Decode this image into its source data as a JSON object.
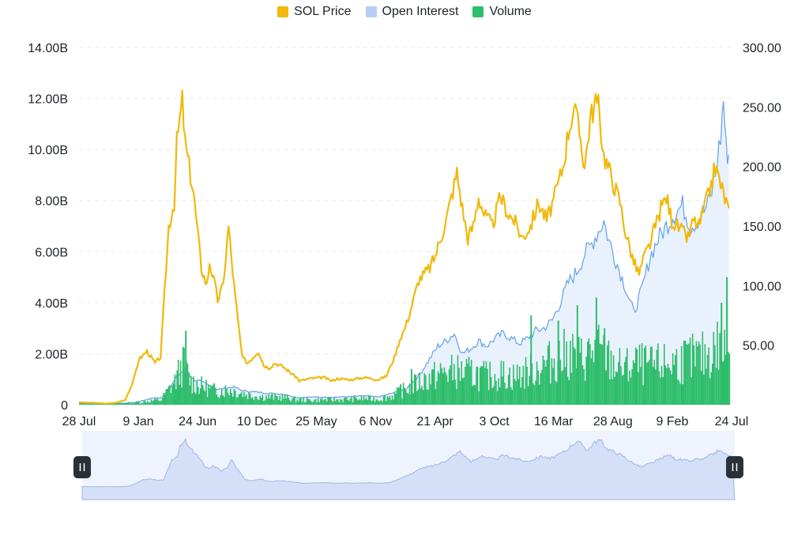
{
  "legend": {
    "items": [
      {
        "label": "SOL Price",
        "color": "#f0b90b"
      },
      {
        "label": "Open Interest",
        "color": "#b7cdf6"
      },
      {
        "label": "Volume",
        "color": "#2ebd6b"
      }
    ]
  },
  "chart_data": {
    "type": "line",
    "title": "",
    "xlabel": "",
    "ylabel_left": "",
    "ylabel_right": "",
    "legend_position": "top-center",
    "grid": true,
    "x_ticks": [
      "28 Jul",
      "9 Jan",
      "24 Jun",
      "10 Dec",
      "25 May",
      "6 Nov",
      "21 Apr",
      "3 Oct",
      "16 Mar",
      "28 Aug",
      "9 Feb",
      "24 Jul"
    ],
    "y_left": {
      "range": [
        0,
        14000000000
      ],
      "tick_labels": [
        "0",
        "2.00B",
        "4.00B",
        "6.00B",
        "8.00B",
        "10.00B",
        "12.00B",
        "14.00B"
      ]
    },
    "y_right": {
      "range": [
        0,
        300
      ],
      "tick_labels": [
        "50.00",
        "100.00",
        "150.00",
        "200.00",
        "250.00",
        "300.00"
      ]
    },
    "series": [
      {
        "name": "SOL Price",
        "axis": "right",
        "color": "#f0b90b",
        "kind": "line",
        "points": [
          [
            0,
            2
          ],
          [
            0.5,
            1.6
          ],
          [
            1,
            1
          ],
          [
            1.3,
            1.5
          ],
          [
            1.7,
            4
          ],
          [
            2,
            20
          ],
          [
            2.2,
            38
          ],
          [
            2.5,
            45
          ],
          [
            2.8,
            35
          ],
          [
            3,
            40
          ],
          [
            3.3,
            150
          ],
          [
            3.5,
            170
          ],
          [
            3.6,
            220
          ],
          [
            3.8,
            255
          ],
          [
            3.9,
            220
          ],
          [
            4.2,
            180
          ],
          [
            4.5,
            115
          ],
          [
            4.7,
            100
          ],
          [
            4.8,
            120
          ],
          [
            5,
            100
          ],
          [
            5.1,
            88
          ],
          [
            5.3,
            100
          ],
          [
            5.5,
            150
          ],
          [
            5.7,
            100
          ],
          [
            6,
            40
          ],
          [
            6.2,
            35
          ],
          [
            6.4,
            40
          ],
          [
            6.6,
            45
          ],
          [
            6.8,
            33
          ],
          [
            7,
            31
          ],
          [
            7.2,
            35
          ],
          [
            7.5,
            32
          ],
          [
            8,
            23
          ],
          [
            8.1,
            20
          ],
          [
            8.5,
            22
          ],
          [
            9,
            23
          ],
          [
            9.3,
            20
          ],
          [
            9.5,
            22
          ],
          [
            10,
            21
          ],
          [
            10.5,
            23
          ],
          [
            11,
            21
          ],
          [
            11.3,
            24
          ],
          [
            11.6,
            40
          ],
          [
            11.8,
            55
          ],
          [
            12,
            65
          ],
          [
            12.2,
            80
          ],
          [
            12.5,
            105
          ],
          [
            12.7,
            110
          ],
          [
            12.9,
            115
          ],
          [
            13.1,
            125
          ],
          [
            13.3,
            140
          ],
          [
            13.5,
            155
          ],
          [
            13.7,
            175
          ],
          [
            13.9,
            195
          ],
          [
            14.1,
            165
          ],
          [
            14.3,
            140
          ],
          [
            14.5,
            150
          ],
          [
            14.7,
            175
          ],
          [
            14.9,
            160
          ],
          [
            15.2,
            150
          ],
          [
            15.5,
            175
          ],
          [
            15.8,
            160
          ],
          [
            16,
            155
          ],
          [
            16.3,
            140
          ],
          [
            16.6,
            150
          ],
          [
            16.9,
            170
          ],
          [
            17.2,
            155
          ],
          [
            17.5,
            175
          ],
          [
            17.8,
            200
          ],
          [
            18,
            230
          ],
          [
            18.2,
            250
          ],
          [
            18.4,
            230
          ],
          [
            18.6,
            200
          ],
          [
            18.8,
            240
          ],
          [
            19,
            255
          ],
          [
            19.1,
            250
          ],
          [
            19.3,
            210
          ],
          [
            19.6,
            190
          ],
          [
            19.9,
            170
          ],
          [
            20.1,
            145
          ],
          [
            20.4,
            120
          ],
          [
            20.6,
            110
          ],
          [
            20.8,
            125
          ],
          [
            21,
            135
          ],
          [
            21.2,
            150
          ],
          [
            21.4,
            165
          ],
          [
            21.6,
            175
          ],
          [
            21.8,
            155
          ],
          [
            22,
            150
          ],
          [
            22.2,
            145
          ],
          [
            22.4,
            140
          ],
          [
            22.6,
            155
          ],
          [
            22.8,
            150
          ],
          [
            23,
            165
          ],
          [
            23.2,
            180
          ],
          [
            23.4,
            200
          ],
          [
            23.6,
            185
          ],
          [
            23.8,
            170
          ],
          [
            23.9,
            165
          ]
        ]
      },
      {
        "name": "Open Interest",
        "axis": "left",
        "color": "#6ba6ea",
        "fill": "#e9f1fd",
        "kind": "area",
        "points": [
          [
            0,
            0.05
          ],
          [
            1,
            0.03
          ],
          [
            2,
            0.08
          ],
          [
            2.8,
            0.28
          ],
          [
            3,
            0.25
          ],
          [
            3.3,
            0.6
          ],
          [
            3.6,
            1.1
          ],
          [
            3.9,
            1.4
          ],
          [
            4.2,
            1.0
          ],
          [
            4.5,
            0.9
          ],
          [
            4.8,
            0.75
          ],
          [
            5.1,
            0.6
          ],
          [
            5.4,
            0.65
          ],
          [
            5.7,
            0.7
          ],
          [
            6,
            0.55
          ],
          [
            6.5,
            0.5
          ],
          [
            7,
            0.45
          ],
          [
            7.5,
            0.42
          ],
          [
            8,
            0.28
          ],
          [
            8.5,
            0.3
          ],
          [
            9,
            0.3
          ],
          [
            9.5,
            0.3
          ],
          [
            10,
            0.32
          ],
          [
            10.5,
            0.35
          ],
          [
            11,
            0.3
          ],
          [
            11.5,
            0.45
          ],
          [
            12,
            0.6
          ],
          [
            12.3,
            0.9
          ],
          [
            12.6,
            1.3
          ],
          [
            12.9,
            1.8
          ],
          [
            13.2,
            2.3
          ],
          [
            13.5,
            2.5
          ],
          [
            13.8,
            2.8
          ],
          [
            14.1,
            2.0
          ],
          [
            14.4,
            2.2
          ],
          [
            14.7,
            2.5
          ],
          [
            15,
            2.3
          ],
          [
            15.3,
            2.6
          ],
          [
            15.6,
            2.8
          ],
          [
            15.9,
            2.6
          ],
          [
            16.2,
            2.4
          ],
          [
            16.5,
            2.6
          ],
          [
            16.8,
            2.9
          ],
          [
            17.1,
            3.0
          ],
          [
            17.4,
            3.3
          ],
          [
            17.7,
            4.0
          ],
          [
            18,
            4.8
          ],
          [
            18.3,
            5.2
          ],
          [
            18.6,
            5.9
          ],
          [
            18.8,
            6.2
          ],
          [
            19.1,
            6.8
          ],
          [
            19.3,
            7.2
          ],
          [
            19.5,
            6.4
          ],
          [
            19.8,
            5.5
          ],
          [
            20.1,
            4.6
          ],
          [
            20.4,
            3.6
          ],
          [
            20.7,
            4.5
          ],
          [
            21,
            5.8
          ],
          [
            21.3,
            6.5
          ],
          [
            21.6,
            7.0
          ],
          [
            21.9,
            7.5
          ],
          [
            22.2,
            7.8
          ],
          [
            22.5,
            7.0
          ],
          [
            22.7,
            7.2
          ],
          [
            23,
            7.6
          ],
          [
            23.2,
            8.0
          ],
          [
            23.4,
            9.0
          ],
          [
            23.6,
            10.5
          ],
          [
            23.7,
            12.0
          ],
          [
            23.8,
            10.0
          ],
          [
            23.9,
            9.8
          ]
        ]
      },
      {
        "name": "Volume",
        "axis": "left",
        "color": "#2ebd6b",
        "kind": "bars",
        "points": [
          [
            0,
            0.05
          ],
          [
            1,
            0.05
          ],
          [
            2,
            0.08
          ],
          [
            3,
            0.2
          ],
          [
            3.5,
            0.9
          ],
          [
            3.8,
            1.6
          ],
          [
            4.1,
            0.9
          ],
          [
            4.4,
            0.75
          ],
          [
            4.7,
            0.65
          ],
          [
            5,
            0.55
          ],
          [
            5.5,
            0.6
          ],
          [
            6,
            0.45
          ],
          [
            6.5,
            0.35
          ],
          [
            7,
            0.3
          ],
          [
            7.5,
            0.3
          ],
          [
            8,
            0.2
          ],
          [
            8.5,
            0.18
          ],
          [
            9,
            0.2
          ],
          [
            9.5,
            0.2
          ],
          [
            10,
            0.22
          ],
          [
            10.5,
            0.25
          ],
          [
            11,
            0.22
          ],
          [
            11.5,
            0.35
          ],
          [
            12,
            0.6
          ],
          [
            12.5,
            0.9
          ],
          [
            13,
            1.1
          ],
          [
            13.5,
            1.3
          ],
          [
            14,
            1.3
          ],
          [
            14.5,
            1.2
          ],
          [
            15,
            1.1
          ],
          [
            15.5,
            1.2
          ],
          [
            16,
            1.1
          ],
          [
            16.5,
            1.3
          ],
          [
            17,
            1.5
          ],
          [
            17.5,
            1.8
          ],
          [
            18,
            2.0
          ],
          [
            18.5,
            1.8
          ],
          [
            19,
            2.2
          ],
          [
            19.5,
            1.7
          ],
          [
            20,
            1.4
          ],
          [
            20.5,
            1.6
          ],
          [
            21,
            1.5
          ],
          [
            21.5,
            1.6
          ],
          [
            22,
            1.7
          ],
          [
            22.5,
            1.8
          ],
          [
            23,
            1.9
          ],
          [
            23.5,
            2.3
          ],
          [
            23.9,
            2.0
          ]
        ]
      }
    ],
    "spikes": [
      [
        3.9,
        2.9
      ],
      [
        11.8,
        0.8
      ],
      [
        12.2,
        1.4
      ],
      [
        14.6,
        1.5
      ],
      [
        16.6,
        3.5
      ],
      [
        17.6,
        3.3
      ],
      [
        18.3,
        3.9
      ],
      [
        19.0,
        4.2
      ],
      [
        19.3,
        3.0
      ],
      [
        23.8,
        5.0
      ],
      [
        23.6,
        4.0
      ]
    ]
  },
  "navigator": {
    "left_handle_icon": "pause-icon",
    "right_handle_icon": "pause-icon"
  }
}
